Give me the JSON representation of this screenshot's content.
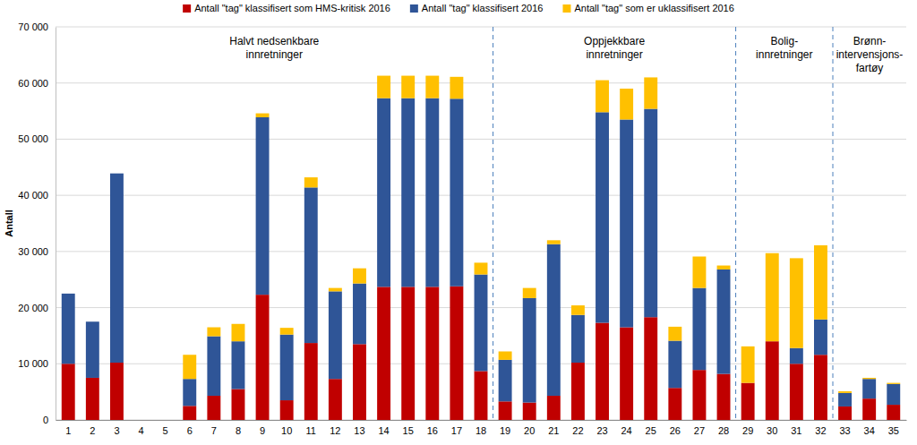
{
  "chart_data": {
    "type": "bar",
    "stacked": true,
    "grid": true,
    "legend": "top",
    "y_label": "Antall",
    "categories": [
      "1",
      "2",
      "3",
      "4",
      "5",
      "6",
      "7",
      "8",
      "9",
      "10",
      "11",
      "12",
      "13",
      "14",
      "15",
      "16",
      "17",
      "18",
      "19",
      "20",
      "21",
      "22",
      "23",
      "24",
      "25",
      "26",
      "27",
      "28",
      "29",
      "30",
      "31",
      "32",
      "33",
      "34",
      "35"
    ],
    "series": [
      {
        "name": "Antall \"tag\" klassifisert som HMS-kritisk 2016",
        "color": "#c00000",
        "values": [
          10000,
          7500,
          10200,
          0,
          0,
          2500,
          4300,
          5500,
          22300,
          3500,
          13700,
          7300,
          13500,
          23700,
          23700,
          23700,
          23800,
          8700,
          3300,
          3100,
          4300,
          10200,
          17300,
          16500,
          18300,
          5700,
          8900,
          8200,
          6600,
          14000,
          10000,
          11600,
          2400,
          3800,
          2700
        ]
      },
      {
        "name": "Antall \"tag\" klassifisert 2016",
        "color": "#2f5597",
        "values": [
          12500,
          10000,
          33700,
          0,
          0,
          4800,
          10600,
          8500,
          31600,
          11700,
          27700,
          15600,
          10800,
          33600,
          33600,
          33600,
          33400,
          17200,
          7400,
          18600,
          27000,
          8500,
          37500,
          37000,
          37100,
          8400,
          14600,
          18600,
          0,
          0,
          2800,
          6300,
          2400,
          3500,
          3700
        ]
      },
      {
        "name": "Antall \"tag\" som er uklassifisert 2016",
        "color": "#ffc000",
        "values": [
          0,
          0,
          0,
          0,
          0,
          4300,
          1600,
          3100,
          700,
          1200,
          1800,
          600,
          2700,
          4000,
          4000,
          4000,
          3900,
          2100,
          1500,
          1800,
          700,
          1700,
          5700,
          5500,
          5600,
          2500,
          5600,
          700,
          6500,
          15700,
          16000,
          13200,
          300,
          200,
          200
        ]
      }
    ],
    "ylim": [
      0,
      70000
    ],
    "yticks": [
      0,
      {
        "value": 10000,
        "label": "10 000"
      },
      {
        "value": 20000,
        "label": "20 000"
      },
      {
        "value": 30000,
        "label": "30 000"
      },
      {
        "value": 40000,
        "label": "40 000"
      },
      {
        "value": 50000,
        "label": "50 000"
      },
      {
        "value": 60000,
        "label": "60 000"
      },
      {
        "value": 70000,
        "label": "70 000"
      }
    ],
    "groups": [
      {
        "lines": [
          "Halvt nedsenkbare",
          "innretninger"
        ],
        "first": "1",
        "last": "18"
      },
      {
        "lines": [
          "Oppjekkbare",
          "innretninger"
        ],
        "first": "19",
        "last": "28"
      },
      {
        "lines": [
          "Bolig-",
          "innretninger"
        ],
        "first": "29",
        "last": "32"
      },
      {
        "lines": [
          "Brønn-",
          "intervensjons-",
          "fartøy"
        ],
        "first": "33",
        "last": "35"
      }
    ]
  }
}
